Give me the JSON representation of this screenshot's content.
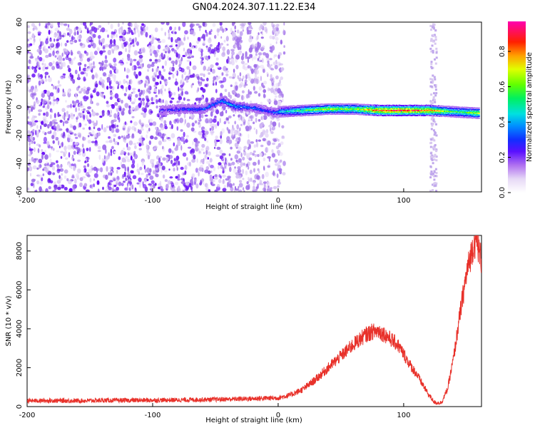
{
  "title": "GN04.2024.307.11.22.E34",
  "chart_data": [
    {
      "type": "heatmap",
      "title": "GN04.2024.307.11.22.E34",
      "xlabel": "Height of straight line (km)",
      "ylabel": "Frequency (Hz)",
      "xlim": [
        -200,
        162
      ],
      "ylim": [
        -60,
        60
      ],
      "x_ticks": [
        "-200",
        "-100",
        "0",
        "100"
      ],
      "y_ticks": [
        "-60",
        "-40",
        "-20",
        "0",
        "20",
        "40",
        "60"
      ],
      "colorbar": {
        "label": "Normalized spectral amplitude",
        "range": [
          0,
          0.97
        ],
        "ticks": [
          "0.0",
          "0.2",
          "0.4",
          "0.6",
          "0.8"
        ],
        "colormap": [
          "#ffffff",
          "#d8c8f0",
          "#8a2be2",
          "#3a00ff",
          "#0050ff",
          "#00c8ff",
          "#00e0a0",
          "#00ff00",
          "#c8ff00",
          "#ffff00",
          "#ff9000",
          "#ff0000",
          "#ff00a0"
        ]
      },
      "signal_track": {
        "description_points_x": [
          -95,
          -80,
          -60,
          -45,
          -35,
          -20,
          -5,
          0,
          20,
          40,
          60,
          80,
          100,
          120,
          140,
          160
        ],
        "center_freq_hz": [
          -2,
          -1,
          -1,
          5,
          1,
          0,
          -3,
          -3,
          -2,
          -1,
          -1,
          -2,
          -2,
          -2,
          -3,
          -4
        ],
        "peak_amplitude": [
          0.3,
          0.35,
          0.4,
          0.45,
          0.45,
          0.4,
          0.35,
          0.45,
          0.6,
          0.7,
          0.65,
          0.9,
          0.95,
          0.85,
          0.6,
          0.7
        ]
      },
      "noise_band_x": [
        -200,
        5
      ],
      "vertical_band_x": 123
    },
    {
      "type": "line",
      "title": "",
      "xlabel": "Height of straight line (km)",
      "ylabel": "SNR (10 * v/v)",
      "xlim": [
        -200,
        162
      ],
      "ylim": [
        0,
        8800
      ],
      "x_ticks": [
        "-200",
        "-100",
        "0",
        "100"
      ],
      "y_ticks": [
        "0",
        "2000",
        "4000",
        "6000",
        "8000"
      ],
      "color": "#e8312a",
      "series": [
        {
          "x": [
            -200,
            -180,
            -160,
            -140,
            -120,
            -100,
            -80,
            -60,
            -40,
            -20,
            0,
            10,
            20,
            30,
            40,
            50,
            60,
            70,
            75,
            80,
            85,
            90,
            95,
            100,
            105,
            110,
            115,
            120,
            125,
            130,
            135,
            140,
            145,
            150,
            155,
            158,
            162
          ],
          "values": [
            300,
            310,
            300,
            320,
            320,
            330,
            340,
            360,
            380,
            410,
            450,
            600,
            900,
            1400,
            2000,
            2600,
            3200,
            3700,
            3850,
            3900,
            3700,
            3450,
            3200,
            2700,
            2150,
            1700,
            1150,
            600,
            200,
            200,
            900,
            2600,
            4800,
            6800,
            8200,
            8600,
            7500
          ]
        }
      ]
    }
  ]
}
